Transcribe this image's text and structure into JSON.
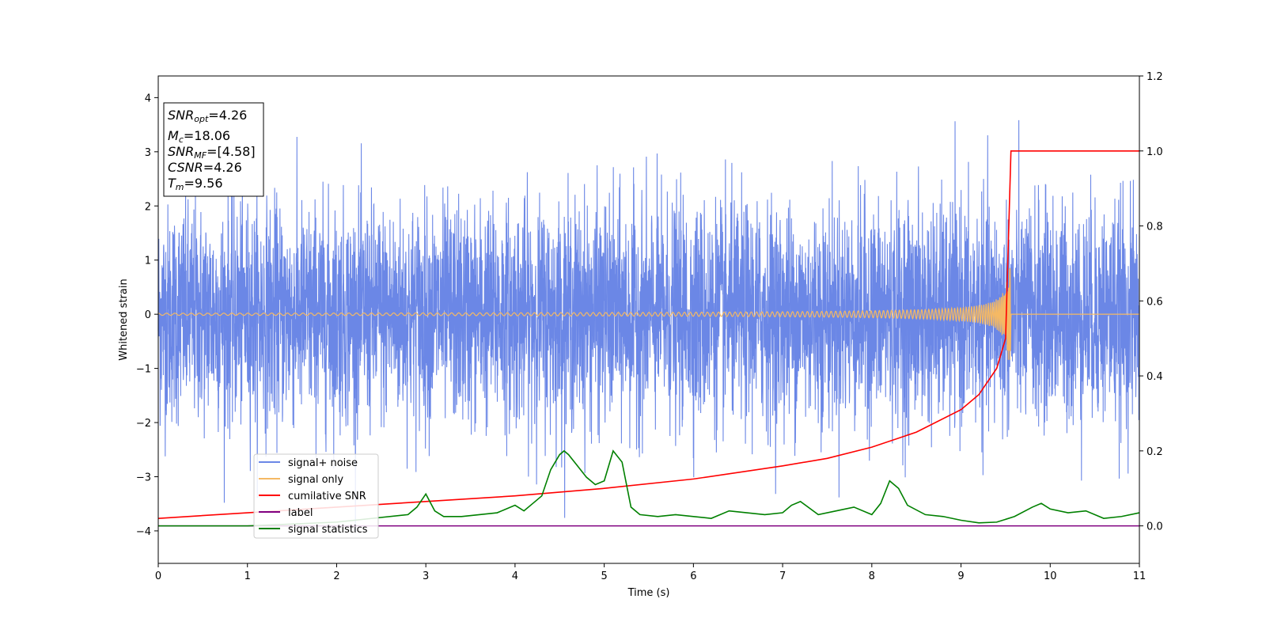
{
  "chart_data": {
    "type": "line",
    "xlabel": "Time (s)",
    "ylabel": "Whitened strain",
    "xlim": [
      0,
      11
    ],
    "ylim_left": [
      -4.6,
      4.4
    ],
    "ylim_right": [
      -0.1,
      1.2
    ],
    "x_ticks": [
      0,
      1,
      2,
      3,
      4,
      5,
      6,
      7,
      8,
      9,
      10,
      11
    ],
    "y_ticks_left": [
      -4,
      -3,
      -2,
      -1,
      0,
      1,
      2,
      3,
      4
    ],
    "y_ticks_right": [
      0.0,
      0.2,
      0.4,
      0.6,
      0.8,
      1.0,
      1.2
    ],
    "tick_labels_left": [
      "−4",
      "−3",
      "−2",
      "−1",
      "0",
      "1",
      "2",
      "3",
      "4"
    ],
    "tick_labels_right": [
      "0.0",
      "0.2",
      "0.4",
      "0.6",
      "0.8",
      "1.0",
      "1.2"
    ],
    "tick_labels_x": [
      "0",
      "1",
      "2",
      "3",
      "4",
      "5",
      "6",
      "7",
      "8",
      "9",
      "10",
      "11"
    ],
    "grid": false,
    "legend_placement": "lower-left",
    "annotation": [
      {
        "sym": "SNR",
        "sub": "opt",
        "value": "=4.26"
      },
      {
        "sym": "M",
        "sub": "c",
        "value": "=18.06"
      },
      {
        "sym": "SNR",
        "sub": "MF",
        "value": "=[4.58]"
      },
      {
        "sym": "CSNR",
        "sub": "",
        "value": "=4.26"
      },
      {
        "sym": "T",
        "sub": "m",
        "value": "=9.56"
      }
    ],
    "series": [
      {
        "name": "signal+ noise",
        "axis": "left",
        "color": "#6b87e6",
        "description_values": {
          "approx_range": [
            -4.2,
            4.0
          ],
          "std": 1.0,
          "x_range": [
            0,
            11
          ]
        }
      },
      {
        "name": "signal only",
        "axis": "left",
        "color": "#f5b964",
        "chirp": {
          "merger_time": 9.56,
          "peak_amplitude": 0.85,
          "min_amplitude": -0.75,
          "start_amplitude": 0.02
        }
      },
      {
        "name": "cumilative SNR",
        "axis": "right",
        "color": "#ff0000",
        "x": [
          0,
          1,
          2,
          3,
          4,
          5,
          6,
          7,
          7.5,
          8,
          8.5,
          9,
          9.2,
          9.4,
          9.5,
          9.56,
          9.6,
          11
        ],
        "y": [
          0.02,
          0.035,
          0.05,
          0.065,
          0.08,
          0.1,
          0.125,
          0.16,
          0.18,
          0.21,
          0.25,
          0.31,
          0.35,
          0.42,
          0.5,
          1.0,
          1.0,
          1.0
        ]
      },
      {
        "name": "label",
        "axis": "right",
        "color": "#800080",
        "x": [
          0,
          11
        ],
        "y": [
          0.0,
          0.0
        ]
      },
      {
        "name": "signal statistics",
        "axis": "right",
        "color": "#008000",
        "x": [
          0,
          0.5,
          1.0,
          1.5,
          2.0,
          2.4,
          2.8,
          2.9,
          3.0,
          3.1,
          3.2,
          3.4,
          3.6,
          3.8,
          4.0,
          4.1,
          4.2,
          4.3,
          4.4,
          4.5,
          4.55,
          4.6,
          4.7,
          4.8,
          4.9,
          5.0,
          5.1,
          5.2,
          5.3,
          5.4,
          5.6,
          5.8,
          6.0,
          6.2,
          6.4,
          6.6,
          6.8,
          7.0,
          7.1,
          7.2,
          7.4,
          7.6,
          7.8,
          8.0,
          8.1,
          8.2,
          8.3,
          8.4,
          8.6,
          8.8,
          9.0,
          9.2,
          9.4,
          9.6,
          9.8,
          9.9,
          10.0,
          10.2,
          10.4,
          10.6,
          10.8,
          11.0
        ],
        "y": [
          0.0,
          0.0,
          0.0,
          0.005,
          0.01,
          0.02,
          0.03,
          0.05,
          0.085,
          0.04,
          0.025,
          0.025,
          0.03,
          0.035,
          0.055,
          0.04,
          0.06,
          0.08,
          0.15,
          0.19,
          0.2,
          0.19,
          0.16,
          0.13,
          0.11,
          0.12,
          0.2,
          0.17,
          0.05,
          0.03,
          0.025,
          0.03,
          0.025,
          0.02,
          0.04,
          0.035,
          0.03,
          0.035,
          0.055,
          0.065,
          0.03,
          0.04,
          0.05,
          0.03,
          0.06,
          0.12,
          0.1,
          0.055,
          0.03,
          0.025,
          0.015,
          0.008,
          0.01,
          0.025,
          0.05,
          0.06,
          0.045,
          0.035,
          0.04,
          0.02,
          0.025,
          0.035
        ]
      }
    ]
  }
}
